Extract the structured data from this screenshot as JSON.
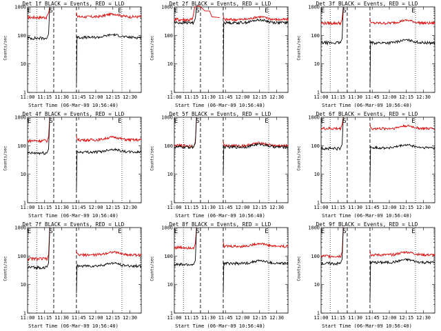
{
  "chart_data": [
    {
      "type": "line",
      "title": "Det 1f BLACK = Events, RED = LLD",
      "ylabel": "Counts/sec",
      "xlabel": "Start Time (06-Mar-09 10:56:40)",
      "black_level": 80,
      "red_level": 430,
      "black_after": 85,
      "red_after": 450,
      "black_spike_min": 2
    },
    {
      "type": "line",
      "title": "Det 2f BLACK = Events, RED = LLD",
      "ylabel": "Counts/sec",
      "xlabel": "Start Time (06-Mar-09 10:56:40)",
      "black_level": 280,
      "red_level": 360,
      "black_after": 280,
      "red_after": 360,
      "black_spike_min": 4,
      "red_peak": 1100,
      "red_decay_to": 720
    },
    {
      "type": "line",
      "title": "Det 3f BLACK = Events, RED = LLD",
      "ylabel": "Counts/sec",
      "xlabel": "Start Time (06-Mar-09 10:56:40)",
      "black_level": 55,
      "red_level": 270,
      "black_after": 55,
      "red_after": 270,
      "black_spike_min": 1.5
    },
    {
      "type": "line",
      "title": "Det 4f BLACK = Events, RED = LLD",
      "ylabel": "Counts/sec",
      "xlabel": "Start Time (06-Mar-09 10:56:40)",
      "black_level": 55,
      "red_level": 150,
      "black_after": 60,
      "red_after": 160,
      "black_spike_min": 3
    },
    {
      "type": "line",
      "title": "Det 5f BLACK = Events, RED = LLD",
      "ylabel": "Counts/sec",
      "xlabel": "Start Time (06-Mar-09 10:56:40)",
      "black_level": 90,
      "red_level": 100,
      "black_after": 90,
      "red_after": 100,
      "black_spike_min": 10
    },
    {
      "type": "line",
      "title": "Det 6f BLACK = Events, RED = LLD",
      "ylabel": "Counts/sec",
      "xlabel": "Start Time (06-Mar-09 10:56:40)",
      "black_level": 80,
      "red_level": 400,
      "black_after": 85,
      "red_after": 400,
      "black_spike_min": 5
    },
    {
      "type": "line",
      "title": "Det 7f BLACK = Events, RED = LLD",
      "ylabel": "Counts/sec",
      "xlabel": "Start Time (06-Mar-09 10:56:40)",
      "black_level": 40,
      "red_level": 80,
      "black_after": 45,
      "red_after": 110,
      "black_spike_min": 5
    },
    {
      "type": "line",
      "title": "Det 8f BLACK = Events, RED = LLD",
      "ylabel": "Counts/sec",
      "xlabel": "Start Time (06-Mar-09 10:56:40)",
      "black_level": 50,
      "red_level": 200,
      "black_after": 55,
      "red_after": 220,
      "black_spike_min": 5
    },
    {
      "type": "line",
      "title": "Det 9f BLACK = Events, RED = LLD",
      "ylabel": "Counts/sec",
      "xlabel": "Start Time (06-Mar-09 10:56:40)",
      "black_level": 55,
      "red_level": 100,
      "black_after": 60,
      "red_after": 110,
      "black_spike_min": 3
    }
  ],
  "shared_axes": {
    "x_ticks": [
      "11:00",
      "11:15",
      "11:30",
      "11:45",
      "12:00",
      "12:15",
      "12:30"
    ],
    "x_tick_minutes": [
      0,
      15,
      30,
      45,
      60,
      75,
      90
    ],
    "x_range_minutes": [
      0,
      100
    ],
    "y_scale": "log",
    "y_range": [
      1,
      1000
    ],
    "y_ticks": [
      "1",
      "10",
      "100",
      "1000"
    ],
    "markers": {
      "start_label": "E",
      "s_label": "S",
      "end_label": "E"
    },
    "dotted_lines_min": [
      8,
      83
    ],
    "dashed_lines_min": [
      23,
      43
    ],
    "gap_minutes": [
      20,
      43
    ]
  },
  "colors": {
    "black": "#000000",
    "red": "#e00000"
  }
}
